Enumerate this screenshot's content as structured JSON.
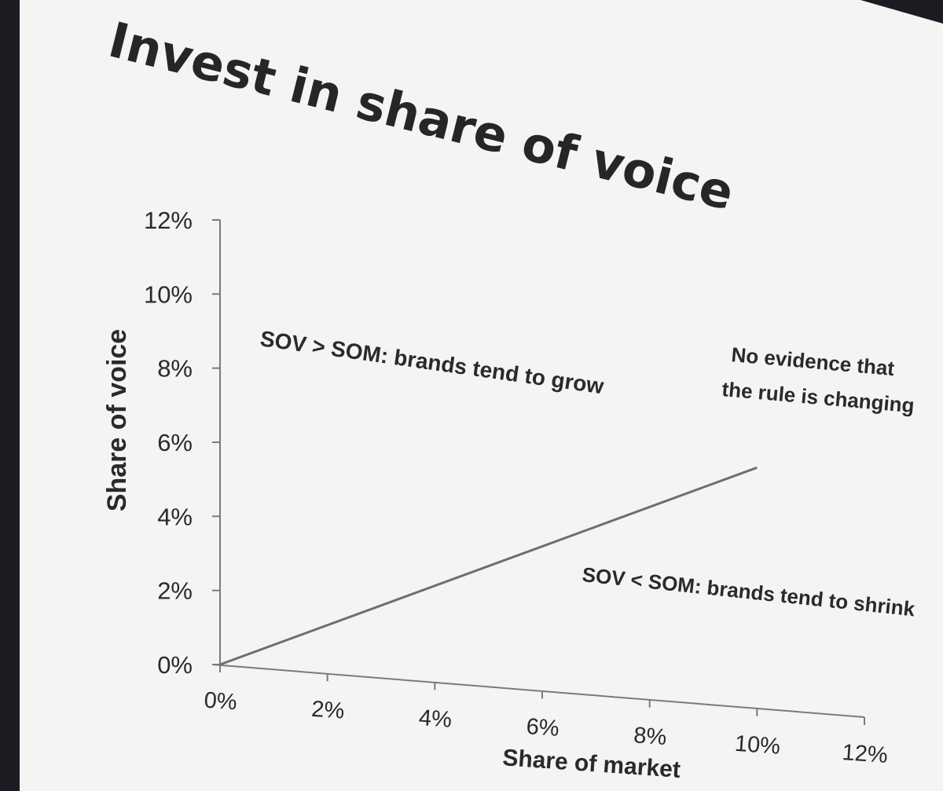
{
  "slide": {
    "title": "Invest in share of voice"
  },
  "chart_data": {
    "type": "line",
    "title": "Invest in share of voice",
    "xlabel": "Share of market",
    "ylabel": "Share of voice",
    "xlim": [
      0,
      12
    ],
    "ylim": [
      0,
      12
    ],
    "x_ticks": [
      "0%",
      "2%",
      "4%",
      "6%",
      "8%",
      "10%",
      "12%"
    ],
    "y_ticks": [
      "0%",
      "2%",
      "4%",
      "6%",
      "8%",
      "10%",
      "12%"
    ],
    "grid": false,
    "series": [
      {
        "x": [
          0,
          10
        ],
        "y": [
          0,
          6.5
        ],
        "color": "#6e6e6e"
      }
    ],
    "annotations": [
      {
        "text": "SOV > SOM: brands tend to grow",
        "x": 3.9,
        "y": 7.9
      },
      {
        "text": "No evidence that",
        "x": 10.2,
        "y": 8.1
      },
      {
        "text": "the rule is changing",
        "x": 10.2,
        "y": 7.3
      },
      {
        "text": "SOV < SOM: brands tend to shrink",
        "x": 10.3,
        "y": 2.1
      }
    ]
  }
}
